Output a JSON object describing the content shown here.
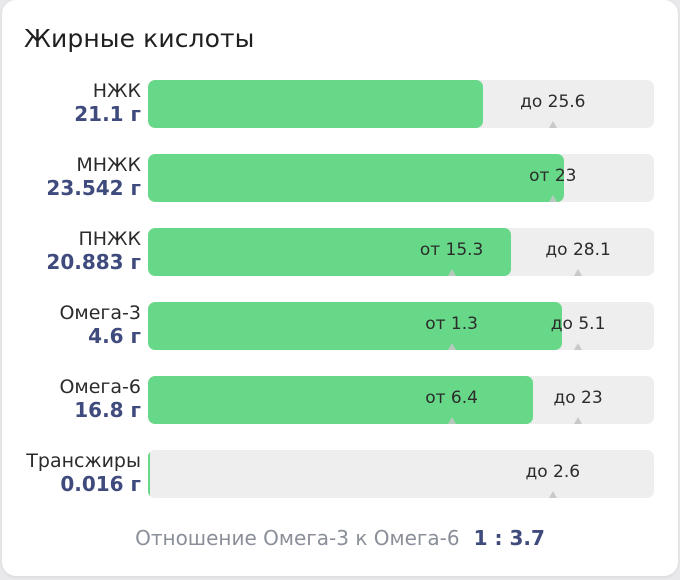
{
  "card": {
    "title": "Жирные кислоты",
    "accent_color": "#66d887",
    "value_color": "#3f4a7d"
  },
  "nutrients": [
    {
      "name": "НЖК",
      "amount": "21.1 г",
      "fill": 0.662,
      "markers": [
        {
          "label": "до 25.6",
          "pos": 0.8
        }
      ]
    },
    {
      "name": "МНЖК",
      "amount": "23.542 г",
      "fill": 0.822,
      "markers": [
        {
          "label": "от 23",
          "pos": 0.8
        }
      ]
    },
    {
      "name": "ПНЖК",
      "amount": "20.883 г",
      "fill": 0.717,
      "markers": [
        {
          "label": "от 15.3",
          "pos": 0.6
        },
        {
          "label": "до 28.1",
          "pos": 0.85
        }
      ]
    },
    {
      "name": "Омега-3",
      "amount": "4.6 г",
      "fill": 0.818,
      "markers": [
        {
          "label": "от 1.3",
          "pos": 0.6
        },
        {
          "label": "до 5.1",
          "pos": 0.85
        }
      ]
    },
    {
      "name": "Омега-6",
      "amount": "16.8 г",
      "fill": 0.761,
      "markers": [
        {
          "label": "от 6.4",
          "pos": 0.6
        },
        {
          "label": "до 23",
          "pos": 0.85
        }
      ]
    },
    {
      "name": "Трансжиры",
      "amount": "0.016 г",
      "fill": 0.004,
      "markers": [
        {
          "label": "до 2.6",
          "pos": 0.8
        }
      ]
    }
  ],
  "footer": {
    "ratio_label": "Отношение Омега-3 к Омега-6",
    "ratio_value": "1 : 3.7"
  }
}
